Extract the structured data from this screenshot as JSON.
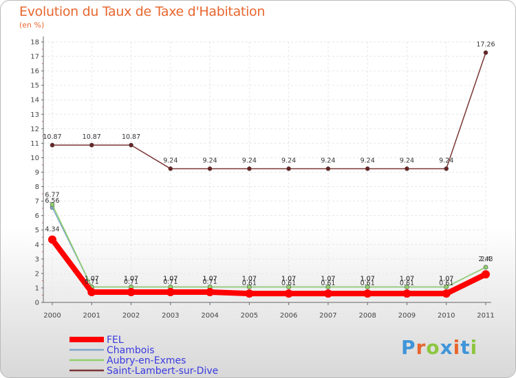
{
  "header": {
    "title": "Evolution du Taux de Taxe d'Habitation",
    "subtitle": "(en %)"
  },
  "brand": {
    "text": "Proxiti",
    "letters": [
      "P",
      "r",
      "o",
      "x",
      "i",
      "t",
      "i"
    ],
    "colors": [
      "#3f95d9",
      "#e8662e",
      "#8dc63f",
      "#3f95d9",
      "#e8662e",
      "#3f95d9",
      "#8dc63f"
    ]
  },
  "chart_data": {
    "type": "line",
    "title": "Evolution du Taux de Taxe d'Habitation",
    "ylabel": "(en %)",
    "ylim": [
      0,
      18
    ],
    "yticks": [
      0,
      1,
      2,
      3,
      4,
      5,
      6,
      7,
      8,
      9,
      10,
      11,
      12,
      13,
      14,
      15,
      16,
      17,
      18
    ],
    "x": [
      "2000",
      "2001",
      "2002",
      "2003",
      "2004",
      "2005",
      "2006",
      "2007",
      "2008",
      "2009",
      "2010",
      "2011"
    ],
    "series": [
      {
        "name": "FEL",
        "color": "#ff0000",
        "values": [
          4.34,
          0.71,
          0.71,
          0.71,
          0.71,
          0.61,
          0.61,
          0.61,
          0.61,
          0.61,
          0.61,
          1.94
        ],
        "labels": [
          "4.34",
          "0.71",
          "0.71",
          "0.71",
          "0.71",
          "0.61",
          "0.61",
          "0.61",
          "0.61",
          "0.61",
          "0.61",
          ""
        ]
      },
      {
        "name": "Chambois",
        "color": "#7fa6c9",
        "values": [
          6.56,
          1.07,
          1.07,
          1.07,
          1.07,
          1.07,
          1.07,
          1.07,
          1.07,
          1.07,
          1.07,
          2.43
        ],
        "labels": [
          "6.56",
          "1.07",
          "1.07",
          "1.07",
          "1.07",
          "1.07",
          "1.07",
          "1.07",
          "1.07",
          "1.07",
          "1.07",
          "2.43"
        ]
      },
      {
        "name": "Aubry-en-Exmes",
        "color": "#8fd06a",
        "values": [
          6.77,
          1.07,
          1.07,
          1.07,
          1.07,
          1.07,
          1.07,
          1.07,
          1.07,
          1.07,
          1.07,
          2.43
        ],
        "labels": [
          "6.77",
          "1.07",
          "1.07",
          "1.07",
          "1.07",
          "1.07",
          "1.07",
          "1.07",
          "1.07",
          "1.07",
          "1.07",
          "2.4"
        ]
      },
      {
        "name": "Saint-Lambert-sur-Dive",
        "color": "#7a3535",
        "values": [
          10.87,
          10.87,
          10.87,
          9.24,
          9.24,
          9.24,
          9.24,
          9.24,
          9.24,
          9.24,
          9.24,
          17.26
        ],
        "labels": [
          "10.87",
          "10.87",
          "10.87",
          "9.24",
          "9.24",
          "9.24",
          "9.24",
          "9.24",
          "9.24",
          "9.24",
          "9.24",
          "17.26"
        ]
      }
    ],
    "legend": [
      "FEL",
      "Chambois",
      "Aubry-en-Exmes",
      "Saint-Lambert-sur-Dive"
    ]
  }
}
